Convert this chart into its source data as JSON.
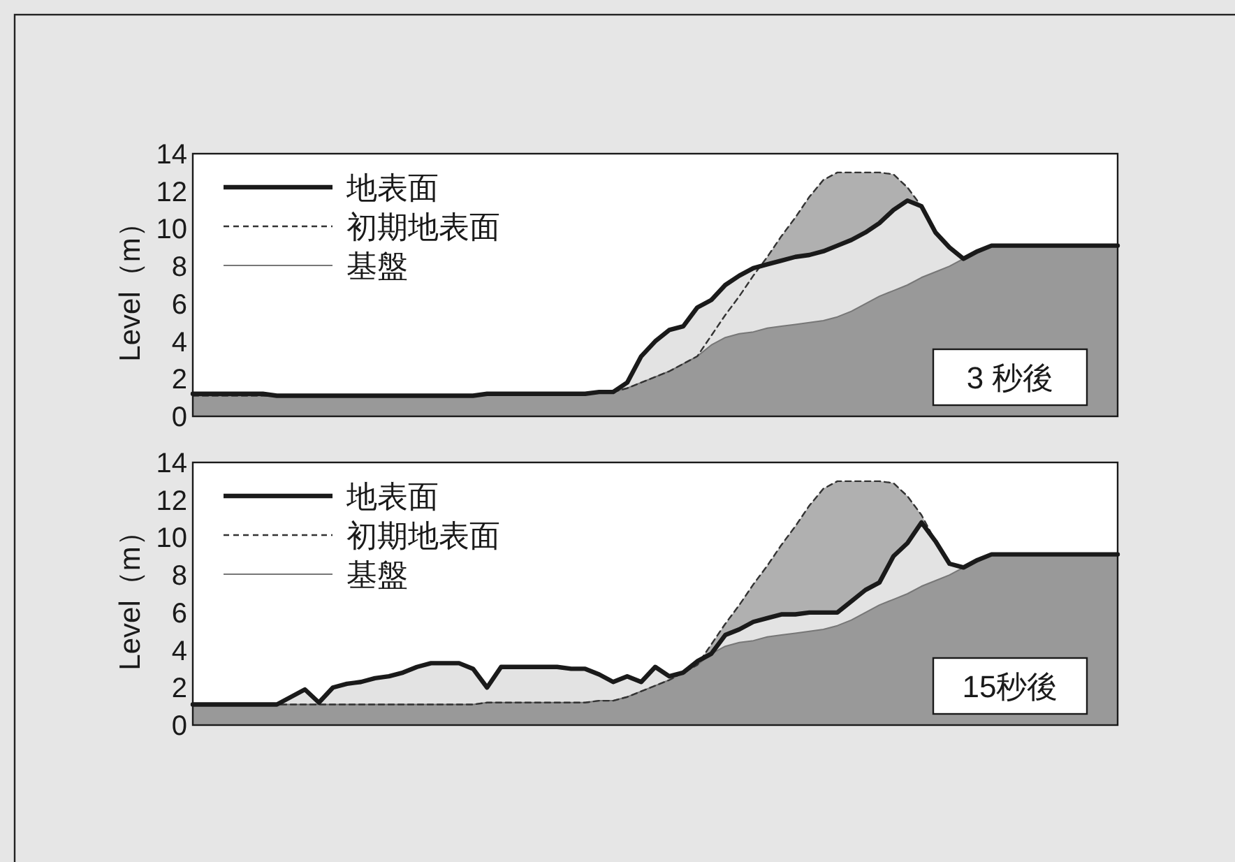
{
  "chart_data": [
    {
      "type": "area",
      "ylabel": "Level（m）",
      "ylim": [
        0,
        14
      ],
      "yticks": [
        0,
        2,
        4,
        6,
        8,
        10,
        12,
        14
      ],
      "legend": "top left",
      "annotations": [
        "3 秒後"
      ],
      "categories": [
        null,
        null,
        null,
        null,
        null,
        null,
        null,
        null,
        null,
        null,
        null,
        null,
        null,
        null,
        null,
        null,
        null,
        null,
        null,
        null,
        null,
        null,
        null,
        null,
        null,
        null,
        null,
        null,
        null,
        null,
        null,
        null,
        null,
        null,
        null,
        null,
        null,
        null,
        null,
        null,
        null,
        null,
        null,
        null,
        null,
        null,
        null,
        null,
        null,
        null,
        null,
        null,
        null,
        null,
        null,
        null,
        null,
        null,
        null,
        null,
        null,
        null,
        null,
        null,
        null,
        null,
        null
      ],
      "series": [
        {
          "name": "地表面",
          "line_style": "solid",
          "color": "#e3e3e3",
          "values": [
            1.2,
            1.2,
            1.2,
            1.2,
            1.2,
            1.2,
            1.1,
            1.1,
            1.1,
            1.1,
            1.1,
            1.1,
            1.1,
            1.1,
            1.1,
            1.1,
            1.1,
            1.1,
            1.1,
            1.1,
            1.1,
            1.2,
            1.2,
            1.2,
            1.2,
            1.2,
            1.2,
            1.2,
            1.2,
            1.3,
            1.3,
            1.8,
            3.2,
            4.0,
            4.6,
            4.8,
            5.8,
            6.2,
            7.0,
            7.5,
            7.9,
            8.1,
            8.3,
            8.5,
            8.6,
            8.8,
            9.1,
            9.4,
            9.8,
            10.3,
            11.0,
            11.5,
            11.2,
            9.8,
            9.0,
            8.4,
            8.8,
            9.1,
            9.1,
            9.1,
            9.1,
            9.1,
            9.1,
            9.1,
            9.1,
            9.1,
            9.1
          ]
        },
        {
          "name": "初期地表面",
          "line_style": "dashed",
          "color": "#b0b0b0",
          "values": [
            1.1,
            1.1,
            1.1,
            1.1,
            1.1,
            1.1,
            1.1,
            1.1,
            1.1,
            1.1,
            1.1,
            1.1,
            1.1,
            1.1,
            1.1,
            1.1,
            1.1,
            1.1,
            1.1,
            1.1,
            1.1,
            1.2,
            1.2,
            1.2,
            1.2,
            1.2,
            1.2,
            1.2,
            1.2,
            1.3,
            1.3,
            1.5,
            1.8,
            2.1,
            2.4,
            2.8,
            3.2,
            4.3,
            5.4,
            6.4,
            7.5,
            8.5,
            9.6,
            10.6,
            11.7,
            12.6,
            13,
            13,
            13,
            13,
            12.9,
            12.2,
            11.2,
            9.8,
            9.0,
            8.4,
            8.8,
            9.1,
            9.1,
            9.1,
            9.1,
            9.1,
            9.1,
            9.1,
            9.1,
            9.1,
            9.1
          ]
        },
        {
          "name": "基盤",
          "line_style": "solid",
          "color": "#999999",
          "values": [
            1.1,
            1.1,
            1.1,
            1.1,
            1.1,
            1.1,
            1.1,
            1.1,
            1.1,
            1.1,
            1.1,
            1.1,
            1.1,
            1.1,
            1.1,
            1.1,
            1.1,
            1.1,
            1.1,
            1.1,
            1.1,
            1.2,
            1.2,
            1.2,
            1.2,
            1.2,
            1.2,
            1.2,
            1.2,
            1.3,
            1.3,
            1.5,
            1.8,
            2.1,
            2.4,
            2.8,
            3.2,
            3.8,
            4.2,
            4.4,
            4.5,
            4.7,
            4.8,
            4.9,
            5.0,
            5.1,
            5.3,
            5.6,
            6.0,
            6.4,
            6.7,
            7.0,
            7.4,
            7.7,
            8.0,
            8.4,
            8.8,
            9.1,
            9.1,
            9.1,
            9.1,
            9.1,
            9.1,
            9.1,
            9.1,
            9.1,
            9.1
          ]
        }
      ]
    },
    {
      "type": "area",
      "ylabel": "Level（m）",
      "ylim": [
        0,
        14
      ],
      "yticks": [
        0,
        2,
        4,
        6,
        8,
        10,
        12,
        14
      ],
      "legend": "top left",
      "annotations": [
        "15秒後"
      ],
      "categories": [
        null,
        null,
        null,
        null,
        null,
        null,
        null,
        null,
        null,
        null,
        null,
        null,
        null,
        null,
        null,
        null,
        null,
        null,
        null,
        null,
        null,
        null,
        null,
        null,
        null,
        null,
        null,
        null,
        null,
        null,
        null,
        null,
        null,
        null,
        null,
        null,
        null,
        null,
        null,
        null,
        null,
        null,
        null,
        null,
        null,
        null,
        null,
        null,
        null,
        null,
        null,
        null,
        null,
        null,
        null,
        null,
        null,
        null,
        null,
        null,
        null,
        null,
        null,
        null,
        null,
        null,
        null
      ],
      "series": [
        {
          "name": "地表面",
          "line_style": "solid",
          "color": "#e3e3e3",
          "values": [
            1.1,
            1.1,
            1.1,
            1.1,
            1.1,
            1.1,
            1.1,
            1.5,
            1.9,
            1.2,
            2.0,
            2.2,
            2.3,
            2.5,
            2.6,
            2.8,
            3.1,
            3.3,
            3.3,
            3.3,
            3.0,
            2.0,
            3.1,
            3.1,
            3.1,
            3.1,
            3.1,
            3.0,
            3.0,
            2.7,
            2.3,
            2.6,
            2.3,
            3.1,
            2.6,
            2.8,
            3.4,
            3.8,
            4.8,
            5.1,
            5.5,
            5.7,
            5.9,
            5.9,
            6.0,
            6.0,
            6.0,
            6.6,
            7.2,
            7.6,
            9.0,
            9.7,
            10.8,
            9.8,
            8.6,
            8.4,
            8.8,
            9.1,
            9.1,
            9.1,
            9.1,
            9.1,
            9.1,
            9.1,
            9.1,
            9.1,
            9.1
          ]
        },
        {
          "name": "初期地表面",
          "line_style": "dashed",
          "color": "#b0b0b0",
          "values": [
            1.1,
            1.1,
            1.1,
            1.1,
            1.1,
            1.1,
            1.1,
            1.1,
            1.1,
            1.1,
            1.1,
            1.1,
            1.1,
            1.1,
            1.1,
            1.1,
            1.1,
            1.1,
            1.1,
            1.1,
            1.1,
            1.2,
            1.2,
            1.2,
            1.2,
            1.2,
            1.2,
            1.2,
            1.2,
            1.3,
            1.3,
            1.5,
            1.8,
            2.1,
            2.4,
            2.8,
            3.2,
            4.3,
            5.4,
            6.4,
            7.5,
            8.5,
            9.6,
            10.6,
            11.7,
            12.6,
            13,
            13,
            13,
            13,
            12.9,
            12.2,
            11.2,
            9.8,
            8.6,
            8.4,
            8.8,
            9.1,
            9.1,
            9.1,
            9.1,
            9.1,
            9.1,
            9.1,
            9.1,
            9.1,
            9.1
          ]
        },
        {
          "name": "基盤",
          "line_style": "solid",
          "color": "#999999",
          "values": [
            1.1,
            1.1,
            1.1,
            1.1,
            1.1,
            1.1,
            1.1,
            1.1,
            1.1,
            1.1,
            1.1,
            1.1,
            1.1,
            1.1,
            1.1,
            1.1,
            1.1,
            1.1,
            1.1,
            1.1,
            1.1,
            1.2,
            1.2,
            1.2,
            1.2,
            1.2,
            1.2,
            1.2,
            1.2,
            1.3,
            1.3,
            1.5,
            1.8,
            2.1,
            2.4,
            2.8,
            3.2,
            3.8,
            4.2,
            4.4,
            4.5,
            4.7,
            4.8,
            4.9,
            5.0,
            5.1,
            5.3,
            5.6,
            6.0,
            6.4,
            6.7,
            7.0,
            7.4,
            7.7,
            8.0,
            8.4,
            8.8,
            9.1,
            9.1,
            9.1,
            9.1,
            9.1,
            9.1,
            9.1,
            9.1,
            9.1,
            9.1
          ]
        }
      ]
    }
  ]
}
